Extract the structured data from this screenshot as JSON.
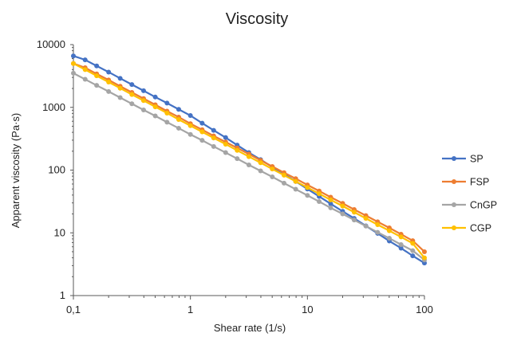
{
  "chart_data": {
    "type": "line",
    "title": "Viscosity",
    "xlabel": "Shear rate (1/s)",
    "ylabel": "Apparent viscosity (Pa·s)",
    "x_scale": "log",
    "y_scale": "log",
    "xlim": [
      0.1,
      100
    ],
    "ylim": [
      1,
      10000
    ],
    "x_ticks": [
      {
        "value": 0.1,
        "label": "0,1"
      },
      {
        "value": 1,
        "label": "1"
      },
      {
        "value": 10,
        "label": "10"
      },
      {
        "value": 100,
        "label": "100"
      }
    ],
    "y_ticks": [
      {
        "value": 1,
        "label": "1"
      },
      {
        "value": 10,
        "label": "10"
      },
      {
        "value": 100,
        "label": "100"
      },
      {
        "value": 1000,
        "label": "1000"
      },
      {
        "value": 10000,
        "label": "10000"
      }
    ],
    "grid": false,
    "legend_position": "right",
    "x": [
      0.1,
      0.126,
      0.158,
      0.2,
      0.251,
      0.316,
      0.398,
      0.501,
      0.631,
      0.794,
      1,
      1.26,
      1.58,
      2,
      2.51,
      3.16,
      3.98,
      5.01,
      6.31,
      7.94,
      10,
      12.6,
      15.8,
      20,
      25.1,
      31.6,
      39.8,
      50.1,
      63.1,
      79.4,
      100
    ],
    "series": [
      {
        "name": "SP",
        "color": "#4472C4",
        "values": [
          6600,
          5720,
          4570,
          3650,
          2900,
          2310,
          1840,
          1460,
          1170,
          929,
          740,
          560,
          430,
          330,
          250,
          190,
          147,
          112,
          86,
          66,
          50,
          38,
          29,
          22,
          17,
          12.9,
          9.8,
          7.4,
          5.7,
          4.3,
          3.3
        ]
      },
      {
        "name": "FSP",
        "color": "#ED7D31",
        "values": [
          5000,
          4280,
          3420,
          2730,
          2170,
          1730,
          1380,
          1100,
          870,
          700,
          550,
          440,
          350,
          280,
          225,
          180,
          143,
          114,
          91,
          73,
          58,
          46.4,
          37,
          29.5,
          23.5,
          18.8,
          15,
          12,
          9.5,
          7.5,
          5
        ]
      },
      {
        "name": "CnGP",
        "color": "#A5A5A5",
        "values": [
          3500,
          2800,
          2240,
          1790,
          1430,
          1140,
          910,
          730,
          580,
          465,
          370,
          298,
          238,
          190,
          152,
          121,
          97,
          78,
          62,
          49.5,
          39.5,
          31.5,
          25,
          20,
          16,
          12.8,
          10.2,
          8.2,
          6.5,
          5.2,
          3.7
        ]
      },
      {
        "name": "CGP",
        "color": "#FFC000",
        "values": [
          5000,
          4000,
          3180,
          2530,
          2020,
          1600,
          1280,
          1020,
          810,
          640,
          510,
          407,
          325,
          259,
          206,
          164,
          131,
          104,
          83,
          66,
          52.7,
          42,
          33.5,
          26.7,
          21.3,
          17,
          13.5,
          10.8,
          8.6,
          6.8,
          4
        ]
      }
    ]
  }
}
